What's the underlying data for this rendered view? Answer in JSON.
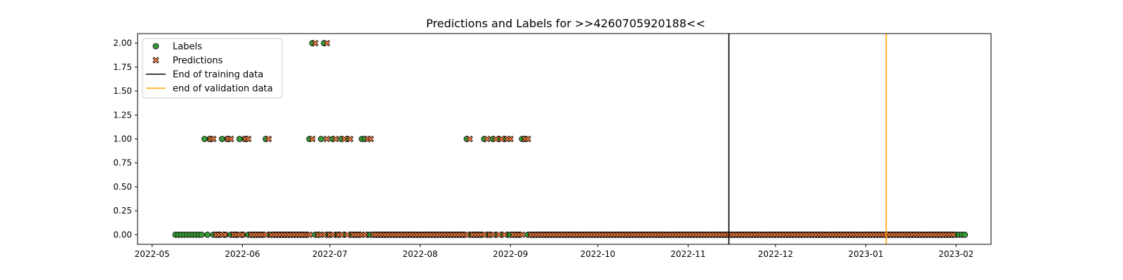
{
  "chart_data": {
    "type": "scatter",
    "title": "Predictions and Labels for >>4260705920188<<",
    "xlabel": "",
    "ylabel": "",
    "xlim": [
      "2022-04-26",
      "2023-02-13"
    ],
    "ylim": [
      -0.1,
      2.1
    ],
    "grid": false,
    "legend_position": "top-left",
    "x_ticks": [
      "2022-05",
      "2022-06",
      "2022-07",
      "2022-08",
      "2022-09",
      "2022-10",
      "2022-11",
      "2022-12",
      "2023-01",
      "2023-02"
    ],
    "x_tick_dates": [
      "2022-05-01",
      "2022-06-01",
      "2022-07-01",
      "2022-08-01",
      "2022-09-01",
      "2022-10-01",
      "2022-11-01",
      "2022-12-01",
      "2023-01-01",
      "2023-02-01"
    ],
    "y_ticks": [
      "0.00",
      "0.25",
      "0.50",
      "0.75",
      "1.00",
      "1.25",
      "1.50",
      "1.75",
      "2.00"
    ],
    "series": [
      {
        "name": "Labels",
        "marker": "circle",
        "color": "#3a9b3a",
        "start": "2022-05-09",
        "end": "2023-02-04",
        "baseline": 0,
        "points": [
          {
            "x": "2022-05-19",
            "y": 1
          },
          {
            "x": "2022-05-21",
            "y": 1
          },
          {
            "x": "2022-05-25",
            "y": 1
          },
          {
            "x": "2022-05-27",
            "y": 1
          },
          {
            "x": "2022-05-31",
            "y": 1
          },
          {
            "x": "2022-06-02",
            "y": 1
          },
          {
            "x": "2022-06-09",
            "y": 1
          },
          {
            "x": "2022-06-24",
            "y": 1
          },
          {
            "x": "2022-06-25",
            "y": 2
          },
          {
            "x": "2022-06-28",
            "y": 1
          },
          {
            "x": "2022-06-29",
            "y": 2
          },
          {
            "x": "2022-07-02",
            "y": 1
          },
          {
            "x": "2022-07-05",
            "y": 1
          },
          {
            "x": "2022-07-07",
            "y": 1
          },
          {
            "x": "2022-07-12",
            "y": 1
          },
          {
            "x": "2022-07-13",
            "y": 1
          },
          {
            "x": "2022-08-17",
            "y": 1
          },
          {
            "x": "2022-08-23",
            "y": 1
          },
          {
            "x": "2022-08-26",
            "y": 1
          },
          {
            "x": "2022-08-28",
            "y": 1
          },
          {
            "x": "2022-08-30",
            "y": 1
          },
          {
            "x": "2022-09-05",
            "y": 1
          },
          {
            "x": "2022-09-06",
            "y": 1
          }
        ]
      },
      {
        "name": "Predictions",
        "marker": "x",
        "color": "#f07a3e",
        "start": "2022-05-21",
        "end": "2023-01-31",
        "baseline": 0,
        "points": [
          {
            "x": "2022-05-21",
            "y": 1
          },
          {
            "x": "2022-05-22",
            "y": 1
          },
          {
            "x": "2022-05-27",
            "y": 1
          },
          {
            "x": "2022-05-28",
            "y": 1
          },
          {
            "x": "2022-06-02",
            "y": 1
          },
          {
            "x": "2022-06-03",
            "y": 1
          },
          {
            "x": "2022-06-10",
            "y": 1
          },
          {
            "x": "2022-06-25",
            "y": 1
          },
          {
            "x": "2022-06-26",
            "y": 2
          },
          {
            "x": "2022-06-30",
            "y": 1
          },
          {
            "x": "2022-06-30",
            "y": 2
          },
          {
            "x": "2022-07-03",
            "y": 1
          },
          {
            "x": "2022-07-06",
            "y": 1
          },
          {
            "x": "2022-07-08",
            "y": 1
          },
          {
            "x": "2022-07-14",
            "y": 1
          },
          {
            "x": "2022-07-15",
            "y": 1
          },
          {
            "x": "2022-08-18",
            "y": 1
          },
          {
            "x": "2022-08-24",
            "y": 1
          },
          {
            "x": "2022-08-27",
            "y": 1
          },
          {
            "x": "2022-08-29",
            "y": 1
          },
          {
            "x": "2022-08-31",
            "y": 1
          },
          {
            "x": "2022-09-01",
            "y": 1
          },
          {
            "x": "2022-09-06",
            "y": 1
          },
          {
            "x": "2022-09-07",
            "y": 1
          }
        ]
      }
    ],
    "vlines": [
      {
        "name": "End of training data",
        "x": "2022-11-15",
        "color": "#000000"
      },
      {
        "name": "end of validation data",
        "x": "2023-01-08",
        "color": "#ffa500"
      }
    ]
  }
}
